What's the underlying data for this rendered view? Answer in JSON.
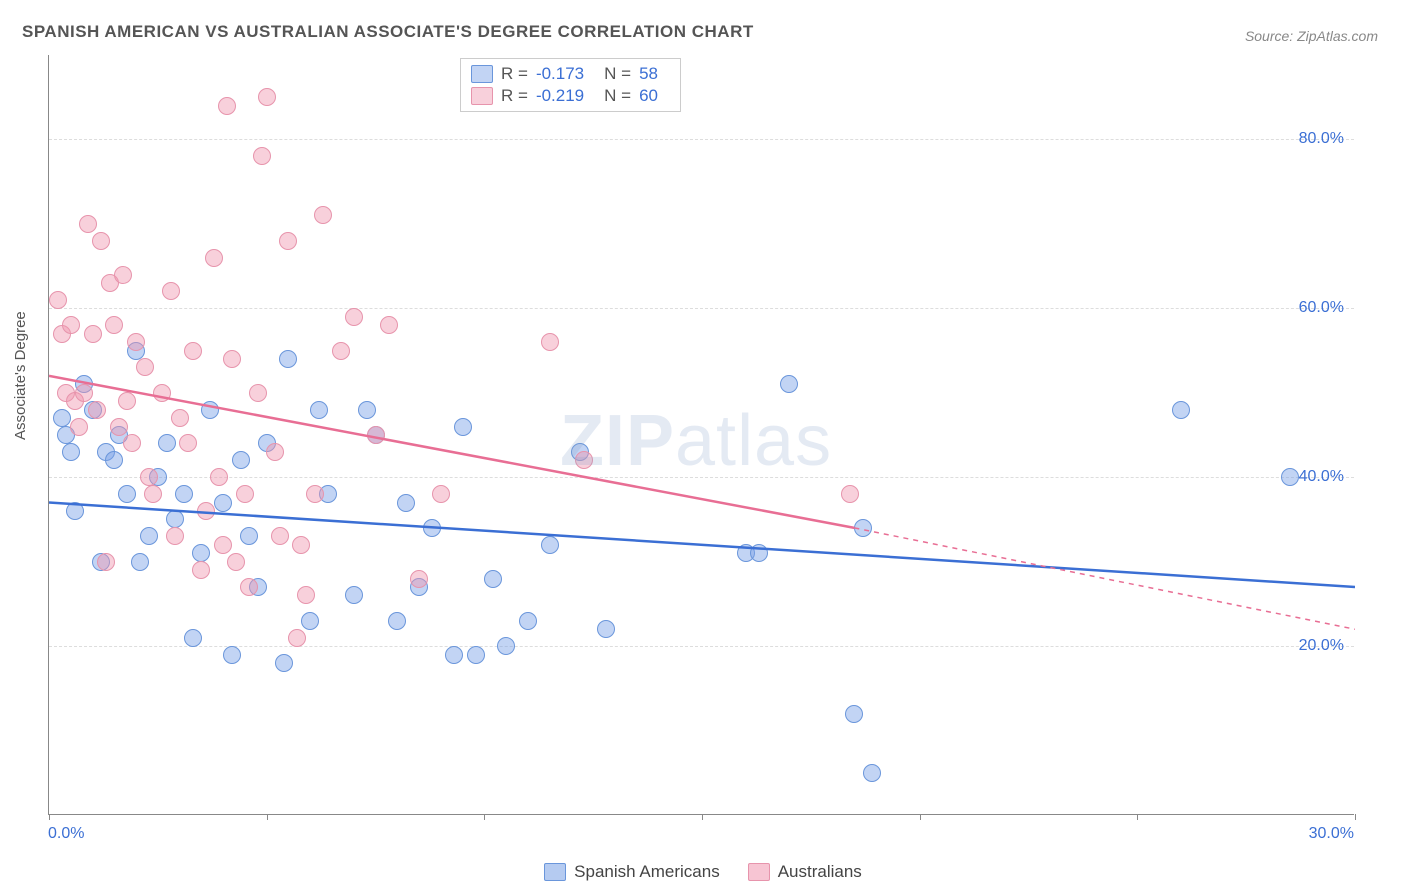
{
  "title": "SPANISH AMERICAN VS AUSTRALIAN ASSOCIATE'S DEGREE CORRELATION CHART",
  "source": "Source: ZipAtlas.com",
  "ylabel": "Associate's Degree",
  "watermark_zip": "ZIP",
  "watermark_atlas": "atlas",
  "chart": {
    "type": "scatter",
    "xlim": [
      0,
      30
    ],
    "ylim": [
      0,
      90
    ],
    "yticks": [
      20,
      40,
      60,
      80
    ],
    "ytick_labels": [
      "20.0%",
      "40.0%",
      "60.0%",
      "80.0%"
    ],
    "xticks": [
      0,
      5,
      10,
      15,
      20,
      25,
      30
    ],
    "xtick_labels_shown": {
      "0": "0.0%",
      "30": "30.0%"
    },
    "grid_color": "#dddddd",
    "axis_color": "#888888",
    "background": "#ffffff",
    "tick_label_color": "#3b6fd4",
    "tick_fontsize": 16,
    "marker_radius": 9,
    "marker_border_width": 1.5,
    "trendline_width": 2.5
  },
  "series": [
    {
      "name": "Spanish Americans",
      "marker_fill": "rgba(120,160,230,0.45)",
      "marker_stroke": "#6a96db",
      "trend_color": "#3b6fd4",
      "trend_solid": {
        "x1": 0,
        "y1": 37,
        "x2": 30,
        "y2": 27
      },
      "points": [
        [
          0.3,
          47
        ],
        [
          0.4,
          45
        ],
        [
          0.5,
          43
        ],
        [
          0.6,
          36
        ],
        [
          0.8,
          51
        ],
        [
          1.0,
          48
        ],
        [
          1.2,
          30
        ],
        [
          1.3,
          43
        ],
        [
          1.5,
          42
        ],
        [
          1.6,
          45
        ],
        [
          1.8,
          38
        ],
        [
          2.0,
          55
        ],
        [
          2.1,
          30
        ],
        [
          2.3,
          33
        ],
        [
          2.5,
          40
        ],
        [
          2.7,
          44
        ],
        [
          2.9,
          35
        ],
        [
          3.1,
          38
        ],
        [
          3.3,
          21
        ],
        [
          3.5,
          31
        ],
        [
          3.7,
          48
        ],
        [
          4.0,
          37
        ],
        [
          4.2,
          19
        ],
        [
          4.4,
          42
        ],
        [
          4.6,
          33
        ],
        [
          4.8,
          27
        ],
        [
          5.0,
          44
        ],
        [
          5.4,
          18
        ],
        [
          5.5,
          54
        ],
        [
          6.0,
          23
        ],
        [
          6.2,
          48
        ],
        [
          6.4,
          38
        ],
        [
          7.0,
          26
        ],
        [
          7.3,
          48
        ],
        [
          7.5,
          45
        ],
        [
          8.0,
          23
        ],
        [
          8.2,
          37
        ],
        [
          8.5,
          27
        ],
        [
          8.8,
          34
        ],
        [
          9.3,
          19
        ],
        [
          9.5,
          46
        ],
        [
          9.8,
          19
        ],
        [
          10.2,
          28
        ],
        [
          10.5,
          20
        ],
        [
          11.0,
          23
        ],
        [
          11.5,
          32
        ],
        [
          12.2,
          43
        ],
        [
          12.8,
          22
        ],
        [
          16.0,
          31
        ],
        [
          16.3,
          31
        ],
        [
          17.0,
          51
        ],
        [
          18.5,
          12
        ],
        [
          18.7,
          34
        ],
        [
          18.9,
          5
        ],
        [
          26.0,
          48
        ],
        [
          28.5,
          40
        ]
      ],
      "stats": {
        "R": "-0.173",
        "N": "58"
      }
    },
    {
      "name": "Australians",
      "marker_fill": "rgba(240,150,175,0.45)",
      "marker_stroke": "#e794ac",
      "trend_color": "#e86e94",
      "trend_solid": {
        "x1": 0,
        "y1": 52,
        "x2": 18.5,
        "y2": 34
      },
      "trend_dashed": {
        "x1": 18.5,
        "y1": 34,
        "x2": 30,
        "y2": 22
      },
      "points": [
        [
          0.2,
          61
        ],
        [
          0.3,
          57
        ],
        [
          0.4,
          50
        ],
        [
          0.5,
          58
        ],
        [
          0.6,
          49
        ],
        [
          0.7,
          46
        ],
        [
          0.8,
          50
        ],
        [
          0.9,
          70
        ],
        [
          1.0,
          57
        ],
        [
          1.1,
          48
        ],
        [
          1.2,
          68
        ],
        [
          1.3,
          30
        ],
        [
          1.4,
          63
        ],
        [
          1.5,
          58
        ],
        [
          1.6,
          46
        ],
        [
          1.7,
          64
        ],
        [
          1.8,
          49
        ],
        [
          1.9,
          44
        ],
        [
          2.0,
          56
        ],
        [
          2.2,
          53
        ],
        [
          2.3,
          40
        ],
        [
          2.4,
          38
        ],
        [
          2.6,
          50
        ],
        [
          2.8,
          62
        ],
        [
          2.9,
          33
        ],
        [
          3.0,
          47
        ],
        [
          3.2,
          44
        ],
        [
          3.3,
          55
        ],
        [
          3.5,
          29
        ],
        [
          3.6,
          36
        ],
        [
          3.8,
          66
        ],
        [
          3.9,
          40
        ],
        [
          4.0,
          32
        ],
        [
          4.1,
          84
        ],
        [
          4.2,
          54
        ],
        [
          4.3,
          30
        ],
        [
          4.5,
          38
        ],
        [
          4.6,
          27
        ],
        [
          4.8,
          50
        ],
        [
          4.9,
          78
        ],
        [
          5.0,
          85
        ],
        [
          5.2,
          43
        ],
        [
          5.3,
          33
        ],
        [
          5.5,
          68
        ],
        [
          5.7,
          21
        ],
        [
          5.8,
          32
        ],
        [
          5.9,
          26
        ],
        [
          6.1,
          38
        ],
        [
          6.3,
          71
        ],
        [
          6.7,
          55
        ],
        [
          7.0,
          59
        ],
        [
          7.5,
          45
        ],
        [
          7.8,
          58
        ],
        [
          8.5,
          28
        ],
        [
          9.0,
          38
        ],
        [
          11.5,
          56
        ],
        [
          12.3,
          42
        ],
        [
          18.4,
          38
        ]
      ],
      "stats": {
        "R": "-0.219",
        "N": "60"
      }
    }
  ],
  "bottom_legend": [
    {
      "label": "Spanish Americans",
      "fill": "rgba(120,160,230,0.55)",
      "stroke": "#6a96db"
    },
    {
      "label": "Australians",
      "fill": "rgba(240,150,175,0.55)",
      "stroke": "#e794ac"
    }
  ],
  "legend_labels": {
    "R": "R =",
    "N": "N ="
  }
}
